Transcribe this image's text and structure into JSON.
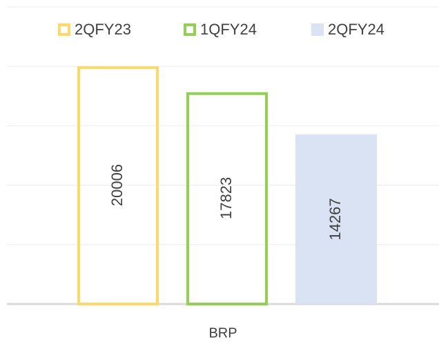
{
  "chart_data": {
    "type": "bar",
    "categories": [
      "BRP"
    ],
    "series": [
      {
        "name": "2QFY23",
        "color": "#FFD966",
        "style": "outline",
        "values": [
          20006
        ]
      },
      {
        "name": "1QFY24",
        "color": "#92D050",
        "style": "outline",
        "values": [
          17823
        ]
      },
      {
        "name": "2QFY24",
        "color": "#DAE3F3",
        "style": "fill",
        "values": [
          14267
        ]
      }
    ],
    "ylim": [
      0,
      25000
    ],
    "yticks": [
      0,
      5000,
      10000,
      15000,
      20000,
      25000
    ],
    "grid": true,
    "legend": "top"
  }
}
